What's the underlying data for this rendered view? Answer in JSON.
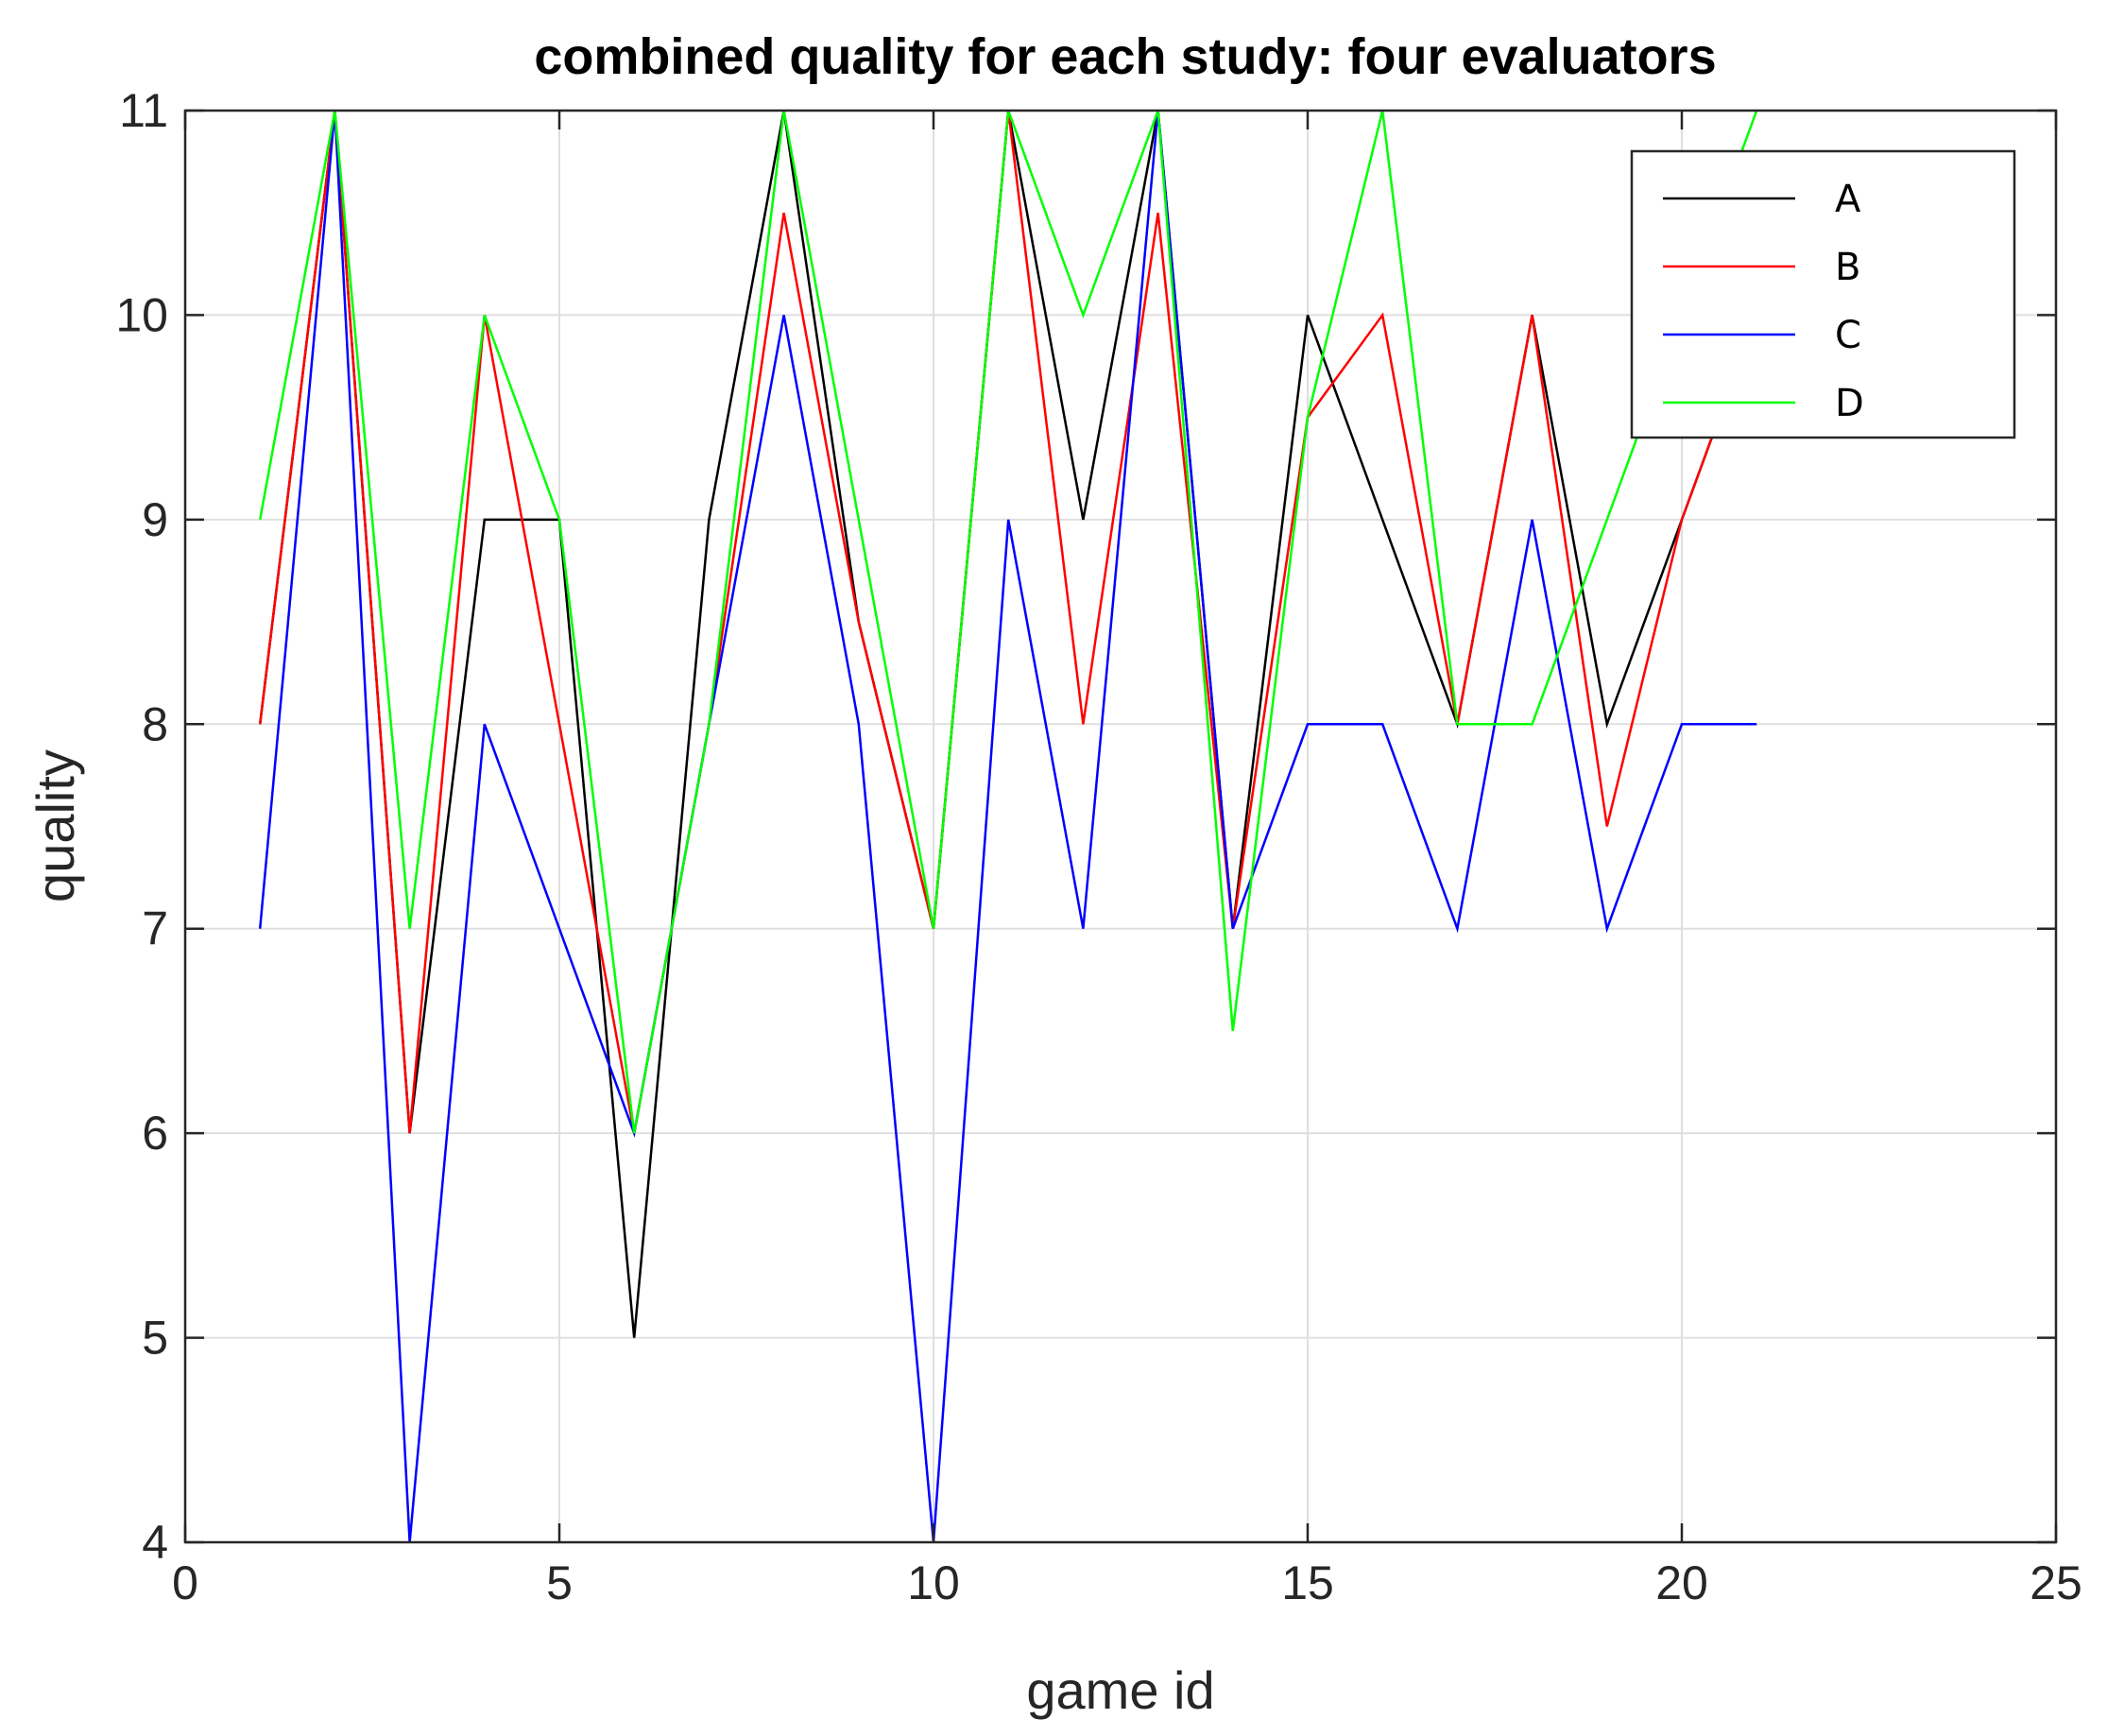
{
  "chart_data": {
    "type": "line",
    "title": "combined quality for each study: four evaluators",
    "xlabel": "game id",
    "ylabel": "quality",
    "xlim": [
      0,
      25
    ],
    "ylim": [
      4,
      11
    ],
    "xticks": [
      0,
      5,
      10,
      15,
      20,
      25
    ],
    "yticks": [
      4,
      5,
      6,
      7,
      8,
      9,
      10,
      11
    ],
    "grid": true,
    "legend_position": "top-right",
    "x": [
      1,
      2,
      3,
      4,
      5,
      6,
      7,
      8,
      9,
      10,
      11,
      12,
      13,
      14,
      15,
      16,
      17,
      18,
      19,
      20,
      21
    ],
    "series": [
      {
        "name": "A",
        "color": "#000000",
        "values": [
          8,
          11,
          6,
          9,
          9,
          5,
          9,
          11,
          8.5,
          7,
          11,
          9,
          11,
          7,
          10,
          9,
          8,
          10,
          8,
          9,
          10
        ]
      },
      {
        "name": "B",
        "color": "#ff0000",
        "values": [
          8,
          11,
          6,
          10,
          8,
          6,
          8,
          10.5,
          8.5,
          7,
          11,
          8,
          10.5,
          7,
          9.5,
          10,
          8,
          10,
          7.5,
          9,
          10
        ]
      },
      {
        "name": "C",
        "color": "#0000ff",
        "values": [
          7,
          11,
          4,
          8,
          7,
          6,
          8,
          10,
          8,
          4,
          9,
          7,
          11,
          7,
          8,
          8,
          7,
          9,
          7,
          8,
          8
        ]
      },
      {
        "name": "D",
        "color": "#00ff00",
        "values": [
          9,
          11,
          7,
          10,
          9,
          6,
          8,
          11,
          9,
          7,
          11,
          10,
          11,
          6.5,
          9.5,
          11,
          8,
          8,
          9,
          10,
          11
        ]
      }
    ]
  }
}
